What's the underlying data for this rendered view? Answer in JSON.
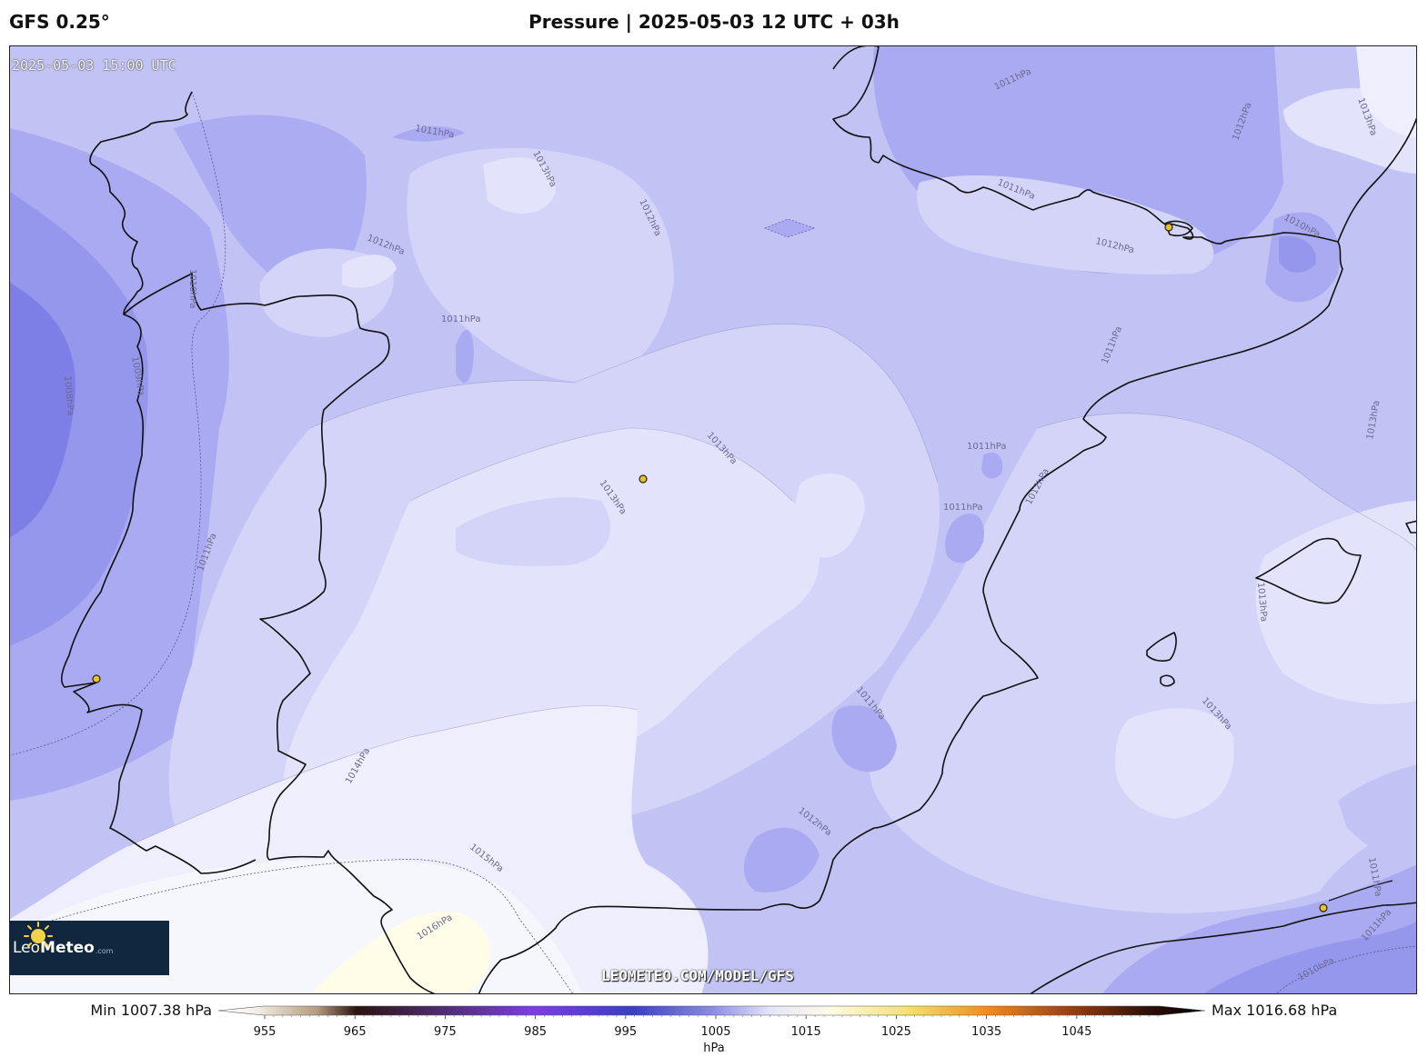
{
  "header": {
    "model": "GFS 0.25°",
    "title": "Pressure | 2025-05-03 12 UTC + 03h"
  },
  "map": {
    "valid_time": "2025-05-03 15:00 UTC",
    "watermark": "LEOMETEO.COM/MODEL/GFS",
    "contour_labels": {
      "l1": "1011hPa",
      "l2": "1013hPa",
      "l3": "1012hPa",
      "l4": "1011hPa",
      "l5": "1012hPa",
      "l6": "1010hPa",
      "l7": "1009hPa",
      "l8": "1008hPa",
      "l9": "1013hPa",
      "l10": "1013hPa",
      "l11": "1011hPa",
      "l12": "1014hPa",
      "l13": "1015hPa",
      "l14": "1016hPa",
      "l15": "1011hPa",
      "l16": "1011hPa",
      "l17": "1012hPa",
      "l18": "1011hPa",
      "l19": "1011hPa",
      "l20": "1012hPa",
      "l21": "1011hPa",
      "l22": "1013hPa",
      "l23": "1012hPa",
      "l24": "1010hPa",
      "l25": "1011hPa",
      "l26": "1013hPa",
      "l27": "1013hPa",
      "l28": "1013hPa",
      "l29": "1012hPa",
      "l30": "1011hPa",
      "l31": "1010hPa",
      "l32": "1011hPa"
    },
    "colors": {
      "p1008": "#7d7fe6",
      "p1009": "#9597ec",
      "p1010": "#a9aaf1",
      "p1011": "#c2c3f5",
      "p1012": "#d3d4f8",
      "p1013": "#e3e3fb",
      "p1014": "#eeeefc",
      "p1015": "#f6f6fd",
      "p1016": "#fffde8"
    }
  },
  "logo": {
    "brand_light": "Leo",
    "brand_bold": "Meteo",
    "domain": ".com"
  },
  "colorbar": {
    "min_label": "Min 1007.38 hPa",
    "max_label": "Max 1016.68 hPa",
    "unit": "hPa",
    "ticks": [
      "955",
      "965",
      "975",
      "985",
      "995",
      "1005",
      "1015",
      "1025",
      "1035",
      "1045"
    ]
  }
}
